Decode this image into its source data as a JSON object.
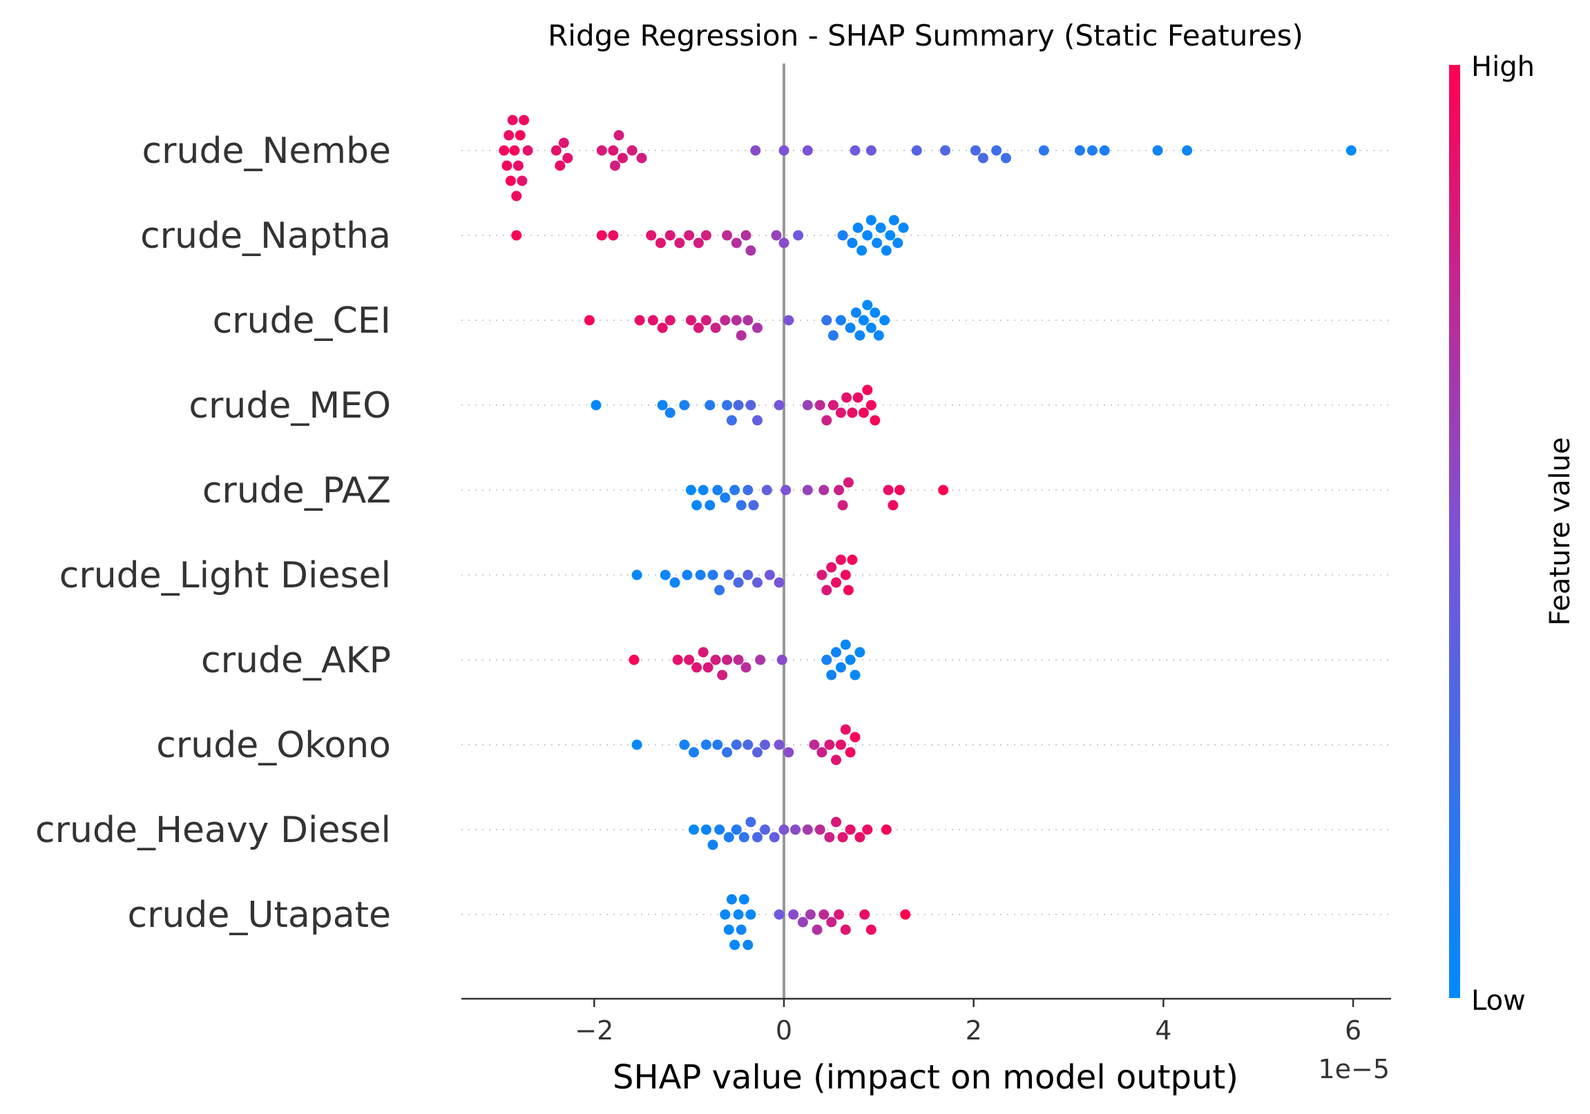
{
  "chart_data": {
    "type": "scatter",
    "subtype": "shap-beeswarm",
    "title": "Ridge Regression - SHAP Summary (Static Features)",
    "xlabel": "SHAP value (impact on model output)",
    "x_offset_text": "1e−5",
    "xlim": [
      -3.4,
      6.4
    ],
    "xticks": [
      -2,
      0,
      2,
      4,
      6
    ],
    "xtick_labels": [
      "−2",
      "0",
      "2",
      "4",
      "6"
    ],
    "grid": false,
    "colorbar": {
      "label": "Feature value",
      "high_label": "High",
      "low_label": "Low",
      "low_color": "#008bfb",
      "mid_color": "#7c53d6",
      "high_color": "#ff0051"
    },
    "features": [
      {
        "name": "crude_Nembe",
        "points": [
          [
            -2.95,
            0.95
          ],
          [
            -2.92,
            0.95
          ],
          [
            -2.9,
            0.93
          ],
          [
            -2.88,
            0.97
          ],
          [
            -2.86,
            0.92
          ],
          [
            -2.84,
            0.96
          ],
          [
            -2.82,
            0.94
          ],
          [
            -2.8,
            0.92
          ],
          [
            -2.78,
            0.97
          ],
          [
            -2.76,
            0.9
          ],
          [
            -2.74,
            0.95
          ],
          [
            -2.7,
            0.9
          ],
          [
            -2.4,
            0.9
          ],
          [
            -2.36,
            0.92
          ],
          [
            -2.32,
            0.88
          ],
          [
            -2.28,
            0.9
          ],
          [
            -1.92,
            0.85
          ],
          [
            -1.8,
            0.87
          ],
          [
            -1.78,
            0.82
          ],
          [
            -1.74,
            0.84
          ],
          [
            -1.7,
            0.86
          ],
          [
            -1.6,
            0.84
          ],
          [
            -1.5,
            0.82
          ],
          [
            -0.3,
            0.55
          ],
          [
            0.0,
            0.5
          ],
          [
            0.25,
            0.5
          ],
          [
            0.75,
            0.45
          ],
          [
            0.92,
            0.45
          ],
          [
            1.4,
            0.35
          ],
          [
            1.7,
            0.32
          ],
          [
            2.02,
            0.3
          ],
          [
            2.1,
            0.3
          ],
          [
            2.24,
            0.25
          ],
          [
            2.34,
            0.24
          ],
          [
            2.74,
            0.18
          ],
          [
            3.12,
            0.14
          ],
          [
            3.25,
            0.12
          ],
          [
            3.38,
            0.1
          ],
          [
            3.94,
            0.06
          ],
          [
            4.25,
            0.05
          ],
          [
            5.98,
            0.0
          ]
        ]
      },
      {
        "name": "crude_Naptha",
        "points": [
          [
            -2.82,
            0.97
          ],
          [
            -1.92,
            0.95
          ],
          [
            -1.8,
            0.93
          ],
          [
            -1.4,
            0.88
          ],
          [
            -1.3,
            0.88
          ],
          [
            -1.2,
            0.86
          ],
          [
            -1.1,
            0.85
          ],
          [
            -1.0,
            0.84
          ],
          [
            -0.9,
            0.83
          ],
          [
            -0.82,
            0.82
          ],
          [
            -0.6,
            0.75
          ],
          [
            -0.5,
            0.72
          ],
          [
            -0.4,
            0.7
          ],
          [
            -0.35,
            0.68
          ],
          [
            -0.08,
            0.6
          ],
          [
            0.0,
            0.55
          ],
          [
            0.15,
            0.45
          ],
          [
            0.62,
            0.1
          ],
          [
            0.72,
            0.05
          ],
          [
            0.78,
            0.04
          ],
          [
            0.82,
            0.02
          ],
          [
            0.88,
            0.03
          ],
          [
            0.92,
            0.02
          ],
          [
            0.98,
            0.04
          ],
          [
            1.02,
            0.02
          ],
          [
            1.08,
            0.03
          ],
          [
            1.12,
            0.01
          ],
          [
            1.16,
            0.04
          ],
          [
            1.2,
            0.02
          ],
          [
            1.26,
            0.03
          ]
        ]
      },
      {
        "name": "crude_CEI",
        "points": [
          [
            -2.05,
            0.97
          ],
          [
            -1.52,
            0.92
          ],
          [
            -1.38,
            0.9
          ],
          [
            -1.28,
            0.9
          ],
          [
            -1.2,
            0.88
          ],
          [
            -0.98,
            0.86
          ],
          [
            -0.9,
            0.85
          ],
          [
            -0.82,
            0.84
          ],
          [
            -0.72,
            0.8
          ],
          [
            -0.62,
            0.76
          ],
          [
            -0.5,
            0.72
          ],
          [
            -0.45,
            0.72
          ],
          [
            -0.38,
            0.7
          ],
          [
            -0.28,
            0.68
          ],
          [
            0.05,
            0.5
          ],
          [
            0.45,
            0.2
          ],
          [
            0.52,
            0.15
          ],
          [
            0.6,
            0.1
          ],
          [
            0.7,
            0.06
          ],
          [
            0.76,
            0.05
          ],
          [
            0.8,
            0.03
          ],
          [
            0.84,
            0.02
          ],
          [
            0.88,
            0.01
          ],
          [
            0.92,
            0.03
          ],
          [
            0.96,
            0.02
          ],
          [
            1.0,
            0.04
          ],
          [
            1.06,
            0.02
          ]
        ]
      },
      {
        "name": "crude_MEO",
        "points": [
          [
            -1.98,
            0.02
          ],
          [
            -1.28,
            0.06
          ],
          [
            -1.2,
            0.08
          ],
          [
            -1.05,
            0.1
          ],
          [
            -0.78,
            0.15
          ],
          [
            -0.6,
            0.2
          ],
          [
            -0.55,
            0.25
          ],
          [
            -0.48,
            0.3
          ],
          [
            -0.35,
            0.35
          ],
          [
            -0.28,
            0.4
          ],
          [
            -0.05,
            0.48
          ],
          [
            0.25,
            0.6
          ],
          [
            0.38,
            0.75
          ],
          [
            0.45,
            0.8
          ],
          [
            0.52,
            0.85
          ],
          [
            0.6,
            0.88
          ],
          [
            0.66,
            0.9
          ],
          [
            0.72,
            0.92
          ],
          [
            0.78,
            0.93
          ],
          [
            0.84,
            0.95
          ],
          [
            0.88,
            0.97
          ],
          [
            0.92,
            0.95
          ],
          [
            0.96,
            0.96
          ]
        ]
      },
      {
        "name": "crude_PAZ",
        "points": [
          [
            -0.98,
            0.02
          ],
          [
            -0.92,
            0.03
          ],
          [
            -0.85,
            0.04
          ],
          [
            -0.78,
            0.06
          ],
          [
            -0.7,
            0.08
          ],
          [
            -0.62,
            0.1
          ],
          [
            -0.52,
            0.15
          ],
          [
            -0.45,
            0.2
          ],
          [
            -0.38,
            0.25
          ],
          [
            -0.32,
            0.3
          ],
          [
            -0.18,
            0.4
          ],
          [
            0.02,
            0.5
          ],
          [
            0.25,
            0.6
          ],
          [
            0.42,
            0.7
          ],
          [
            0.58,
            0.8
          ],
          [
            0.62,
            0.82
          ],
          [
            0.68,
            0.85
          ],
          [
            1.1,
            0.92
          ],
          [
            1.15,
            0.94
          ],
          [
            1.22,
            0.95
          ],
          [
            1.68,
            1.0
          ]
        ]
      },
      {
        "name": "crude_Light Diesel",
        "points": [
          [
            -1.55,
            0.02
          ],
          [
            -1.25,
            0.05
          ],
          [
            -1.15,
            0.06
          ],
          [
            -1.02,
            0.08
          ],
          [
            -0.88,
            0.1
          ],
          [
            -0.75,
            0.15
          ],
          [
            -0.68,
            0.2
          ],
          [
            -0.58,
            0.25
          ],
          [
            -0.48,
            0.3
          ],
          [
            -0.38,
            0.35
          ],
          [
            -0.28,
            0.4
          ],
          [
            -0.15,
            0.45
          ],
          [
            -0.05,
            0.48
          ],
          [
            0.4,
            0.85
          ],
          [
            0.45,
            0.87
          ],
          [
            0.5,
            0.9
          ],
          [
            0.55,
            0.92
          ],
          [
            0.6,
            0.93
          ],
          [
            0.65,
            0.95
          ],
          [
            0.68,
            0.96
          ],
          [
            0.72,
            0.97
          ]
        ]
      },
      {
        "name": "crude_AKP",
        "points": [
          [
            -1.58,
            0.97
          ],
          [
            -1.12,
            0.9
          ],
          [
            -1.0,
            0.88
          ],
          [
            -0.92,
            0.87
          ],
          [
            -0.85,
            0.86
          ],
          [
            -0.8,
            0.85
          ],
          [
            -0.72,
            0.83
          ],
          [
            -0.65,
            0.82
          ],
          [
            -0.6,
            0.8
          ],
          [
            -0.48,
            0.75
          ],
          [
            -0.4,
            0.72
          ],
          [
            -0.25,
            0.68
          ],
          [
            -0.02,
            0.55
          ],
          [
            0.45,
            0.1
          ],
          [
            0.5,
            0.08
          ],
          [
            0.55,
            0.06
          ],
          [
            0.6,
            0.05
          ],
          [
            0.65,
            0.04
          ],
          [
            0.7,
            0.03
          ],
          [
            0.75,
            0.02
          ],
          [
            0.8,
            0.01
          ]
        ]
      },
      {
        "name": "crude_Okono",
        "points": [
          [
            -1.55,
            0.02
          ],
          [
            -1.05,
            0.08
          ],
          [
            -0.95,
            0.1
          ],
          [
            -0.82,
            0.12
          ],
          [
            -0.7,
            0.15
          ],
          [
            -0.6,
            0.2
          ],
          [
            -0.5,
            0.25
          ],
          [
            -0.38,
            0.3
          ],
          [
            -0.28,
            0.35
          ],
          [
            -0.2,
            0.4
          ],
          [
            -0.05,
            0.5
          ],
          [
            0.05,
            0.55
          ],
          [
            0.32,
            0.75
          ],
          [
            0.4,
            0.8
          ],
          [
            0.48,
            0.85
          ],
          [
            0.55,
            0.88
          ],
          [
            0.6,
            0.9
          ],
          [
            0.65,
            0.92
          ],
          [
            0.7,
            0.95
          ],
          [
            0.75,
            0.97
          ]
        ]
      },
      {
        "name": "crude_Heavy Diesel",
        "points": [
          [
            -0.95,
            0.02
          ],
          [
            -0.82,
            0.05
          ],
          [
            -0.75,
            0.08
          ],
          [
            -0.68,
            0.1
          ],
          [
            -0.58,
            0.12
          ],
          [
            -0.5,
            0.15
          ],
          [
            -0.42,
            0.2
          ],
          [
            -0.35,
            0.25
          ],
          [
            -0.28,
            0.3
          ],
          [
            -0.2,
            0.35
          ],
          [
            -0.1,
            0.4
          ],
          [
            0.0,
            0.5
          ],
          [
            0.12,
            0.55
          ],
          [
            0.25,
            0.65
          ],
          [
            0.38,
            0.75
          ],
          [
            0.48,
            0.8
          ],
          [
            0.55,
            0.85
          ],
          [
            0.62,
            0.88
          ],
          [
            0.7,
            0.9
          ],
          [
            0.8,
            0.92
          ],
          [
            0.88,
            0.93
          ],
          [
            1.08,
            0.97
          ]
        ]
      },
      {
        "name": "crude_Utapate",
        "points": [
          [
            -0.62,
            0.04
          ],
          [
            -0.58,
            0.03
          ],
          [
            -0.55,
            0.05
          ],
          [
            -0.52,
            0.02
          ],
          [
            -0.48,
            0.04
          ],
          [
            -0.45,
            0.06
          ],
          [
            -0.42,
            0.03
          ],
          [
            -0.38,
            0.05
          ],
          [
            -0.35,
            0.04
          ],
          [
            -0.05,
            0.45
          ],
          [
            0.1,
            0.55
          ],
          [
            0.2,
            0.6
          ],
          [
            0.28,
            0.65
          ],
          [
            0.35,
            0.7
          ],
          [
            0.42,
            0.75
          ],
          [
            0.5,
            0.8
          ],
          [
            0.58,
            0.85
          ],
          [
            0.65,
            0.88
          ],
          [
            0.85,
            0.92
          ],
          [
            0.92,
            0.93
          ],
          [
            1.28,
            1.0
          ]
        ]
      }
    ]
  }
}
